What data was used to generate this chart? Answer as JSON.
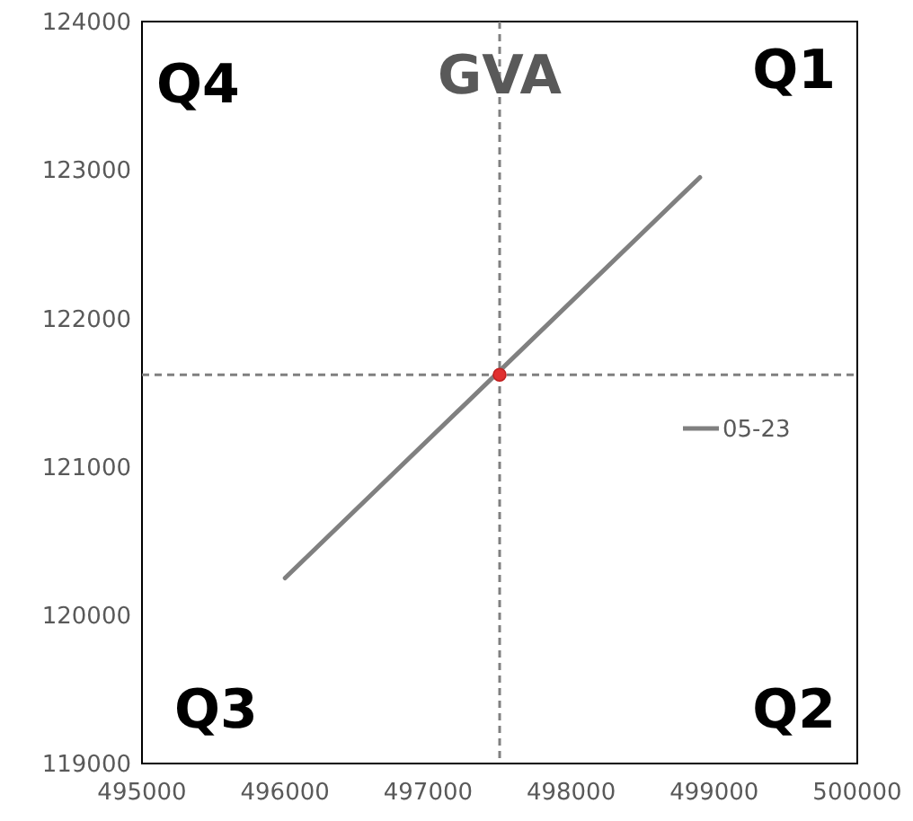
{
  "chart_data": {
    "type": "line",
    "title": "GVA",
    "series": [
      {
        "name": "05-23",
        "color": "#808080",
        "x": [
          496000,
          498900
        ],
        "values": [
          120250,
          122950
        ]
      },
      {
        "type": "scatter",
        "marker": "circle",
        "color": "#e03030",
        "x": [
          497500
        ],
        "values": [
          121620
        ]
      }
    ],
    "xlim": [
      495000,
      500000
    ],
    "xticks": [
      495000,
      496000,
      497000,
      498000,
      499000,
      500000
    ],
    "ylim": [
      119000,
      124000
    ],
    "yticks": [
      119000,
      120000,
      121000,
      122000,
      123000,
      124000
    ],
    "ref_lines": [
      {
        "axis": "x",
        "value": 497500,
        "color": "#808080",
        "line_style": "dashed"
      },
      {
        "axis": "y",
        "value": 121620,
        "color": "#808080",
        "line_style": "dashed"
      }
    ],
    "annotations": [
      "Q4",
      "Q1",
      "Q3",
      "Q2"
    ],
    "legend": "right",
    "grid": false,
    "marker": "none",
    "line_style": "solid"
  }
}
